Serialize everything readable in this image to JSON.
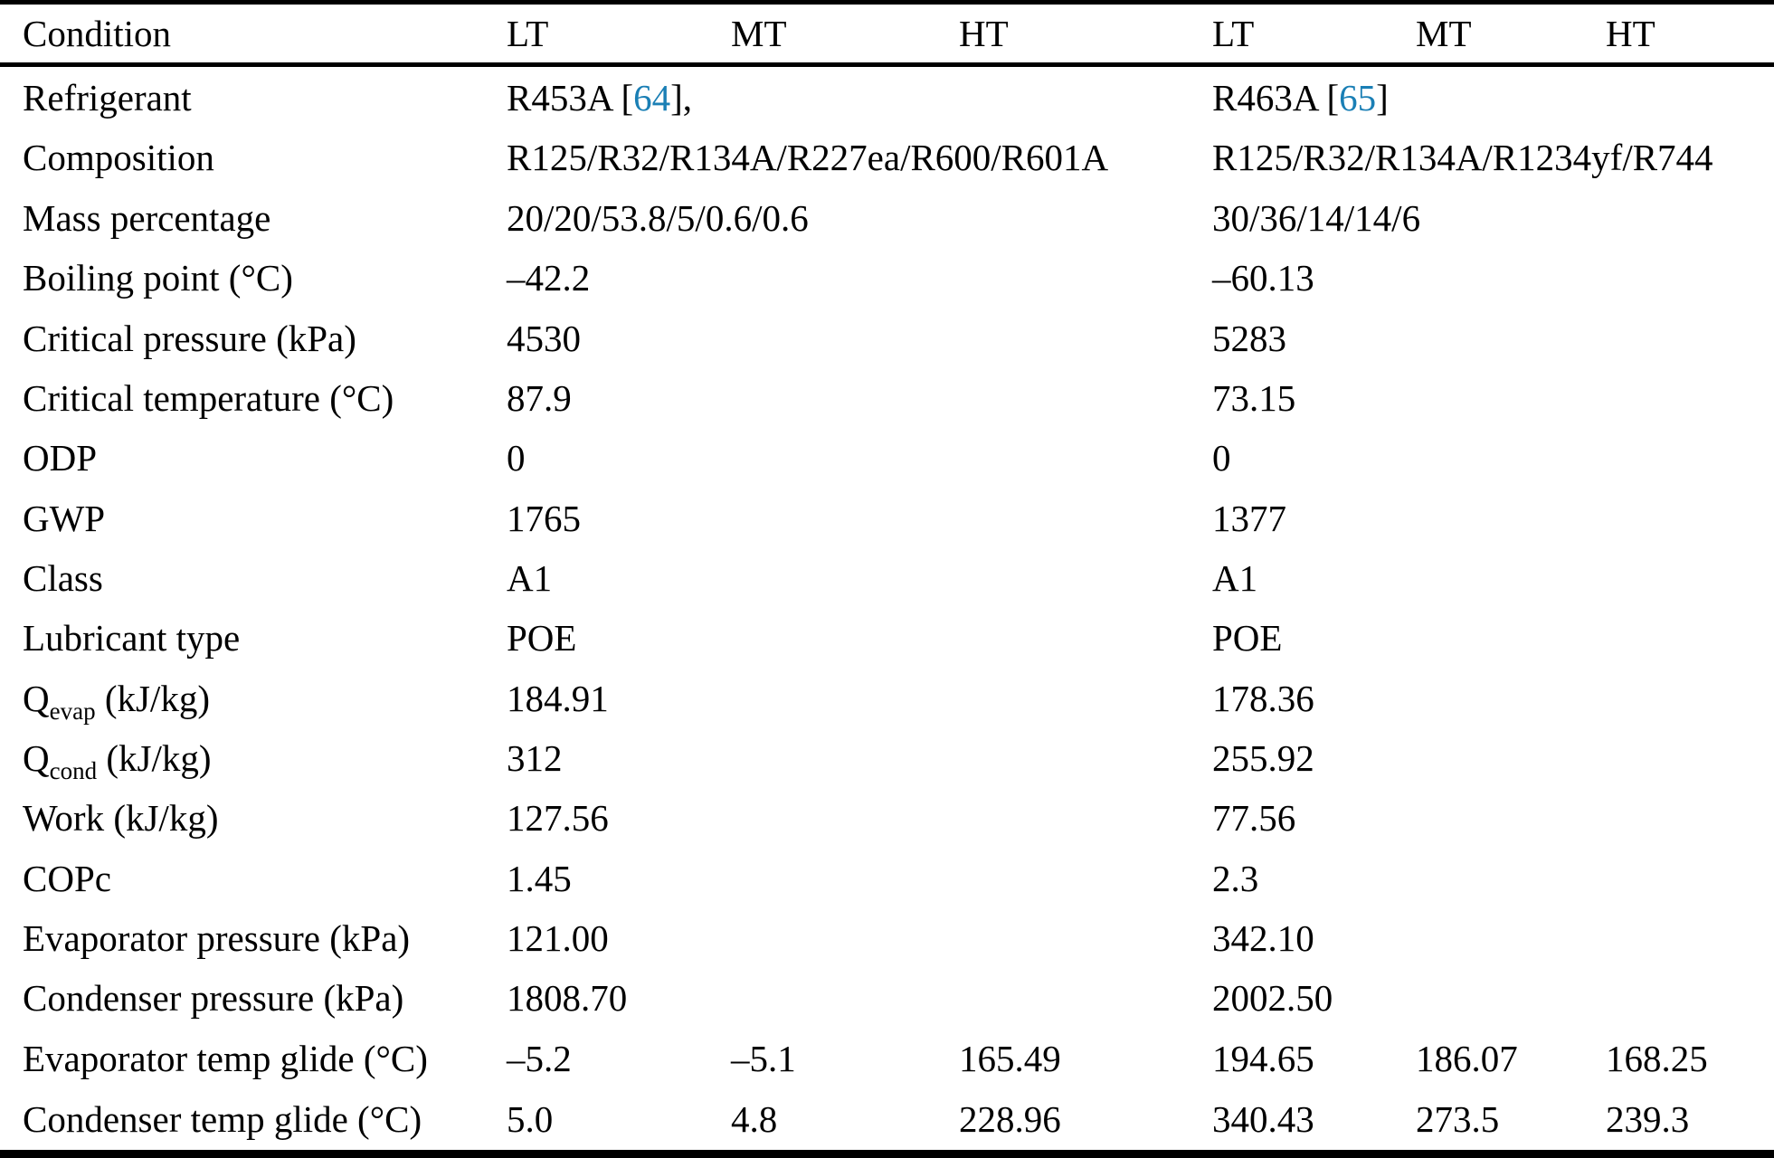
{
  "colors": {
    "text": "#000000",
    "citation": "#1a7fb5",
    "rule": "#000000",
    "background": "#ffffff"
  },
  "table": {
    "header": [
      "Condition",
      "LT",
      "MT",
      "HT",
      "LT",
      "MT",
      "HT"
    ],
    "rows": [
      {
        "label": {
          "pre": "Refrigerant",
          "sub": "",
          "post": ""
        },
        "cells": [
          {
            "span": 3,
            "pre": "R453A [",
            "cite": "64",
            "post": "],"
          },
          {
            "span": 3,
            "pre": "R463A [",
            "cite": "65",
            "post": "]"
          }
        ]
      },
      {
        "label": {
          "pre": "Composition",
          "sub": "",
          "post": ""
        },
        "cells": [
          {
            "span": 3,
            "text": "R125/R32/R134A/R227ea/R600/R601A"
          },
          {
            "span": 3,
            "text": "R125/R32/R134A/R1234yf/R744"
          }
        ]
      },
      {
        "label": {
          "pre": "Mass percentage",
          "sub": "",
          "post": ""
        },
        "cells": [
          {
            "span": 3,
            "text": "20/20/53.8/5/0.6/0.6"
          },
          {
            "span": 3,
            "text": "30/36/14/14/6"
          }
        ]
      },
      {
        "label": {
          "pre": "Boiling point (°C)",
          "sub": "",
          "post": ""
        },
        "cells": [
          {
            "span": 3,
            "text": "–42.2"
          },
          {
            "span": 3,
            "text": "–60.13"
          }
        ]
      },
      {
        "label": {
          "pre": "Critical pressure (kPa)",
          "sub": "",
          "post": ""
        },
        "cells": [
          {
            "span": 3,
            "text": "4530"
          },
          {
            "span": 3,
            "text": "5283"
          }
        ]
      },
      {
        "label": {
          "pre": "Critical temperature (°C)",
          "sub": "",
          "post": ""
        },
        "cells": [
          {
            "span": 3,
            "text": "87.9"
          },
          {
            "span": 3,
            "text": "73.15"
          }
        ]
      },
      {
        "label": {
          "pre": "ODP",
          "sub": "",
          "post": ""
        },
        "cells": [
          {
            "span": 3,
            "text": "0"
          },
          {
            "span": 3,
            "text": "0"
          }
        ]
      },
      {
        "label": {
          "pre": "GWP",
          "sub": "",
          "post": ""
        },
        "cells": [
          {
            "span": 3,
            "text": "1765"
          },
          {
            "span": 3,
            "text": "1377"
          }
        ]
      },
      {
        "label": {
          "pre": "Class",
          "sub": "",
          "post": ""
        },
        "cells": [
          {
            "span": 3,
            "text": "A1"
          },
          {
            "span": 3,
            "text": "A1"
          }
        ]
      },
      {
        "label": {
          "pre": "Lubricant type",
          "sub": "",
          "post": ""
        },
        "cells": [
          {
            "span": 3,
            "text": "POE"
          },
          {
            "span": 3,
            "text": "POE"
          }
        ]
      },
      {
        "label": {
          "pre": "Q",
          "sub": "evap",
          "post": " (kJ/kg)"
        },
        "cells": [
          {
            "span": 3,
            "text": "184.91"
          },
          {
            "span": 3,
            "text": "178.36"
          }
        ]
      },
      {
        "label": {
          "pre": "Q",
          "sub": "cond",
          "post": " (kJ/kg)"
        },
        "cells": [
          {
            "span": 3,
            "text": "312"
          },
          {
            "span": 3,
            "text": "255.92"
          }
        ]
      },
      {
        "label": {
          "pre": "Work (kJ/kg)",
          "sub": "",
          "post": ""
        },
        "cells": [
          {
            "span": 3,
            "text": "127.56"
          },
          {
            "span": 3,
            "text": "77.56"
          }
        ]
      },
      {
        "label": {
          "pre": "COPc",
          "sub": "",
          "post": ""
        },
        "cells": [
          {
            "span": 3,
            "text": "1.45"
          },
          {
            "span": 3,
            "text": "2.3"
          }
        ]
      },
      {
        "label": {
          "pre": "Evaporator pressure (kPa)",
          "sub": "",
          "post": ""
        },
        "cells": [
          {
            "span": 3,
            "text": "121.00"
          },
          {
            "span": 3,
            "text": "342.10"
          }
        ]
      },
      {
        "label": {
          "pre": "Condenser pressure (kPa)",
          "sub": "",
          "post": ""
        },
        "cells": [
          {
            "span": 3,
            "text": "1808.70"
          },
          {
            "span": 3,
            "text": "2002.50"
          }
        ]
      },
      {
        "label": {
          "pre": "Evaporator temp glide (°C)",
          "sub": "",
          "post": ""
        },
        "cells": [
          {
            "span": 1,
            "text": "–5.2"
          },
          {
            "span": 1,
            "text": "–5.1"
          },
          {
            "span": 1,
            "text": "165.49"
          },
          {
            "span": 1,
            "text": "194.65"
          },
          {
            "span": 1,
            "text": "186.07"
          },
          {
            "span": 1,
            "text": "168.25"
          }
        ]
      },
      {
        "label": {
          "pre": "Condenser temp glide (°C)",
          "sub": "",
          "post": ""
        },
        "cells": [
          {
            "span": 1,
            "text": "5.0"
          },
          {
            "span": 1,
            "text": "4.8"
          },
          {
            "span": 1,
            "text": "228.96"
          },
          {
            "span": 1,
            "text": "340.43"
          },
          {
            "span": 1,
            "text": "273.5"
          },
          {
            "span": 1,
            "text": "239.3"
          }
        ]
      }
    ]
  }
}
